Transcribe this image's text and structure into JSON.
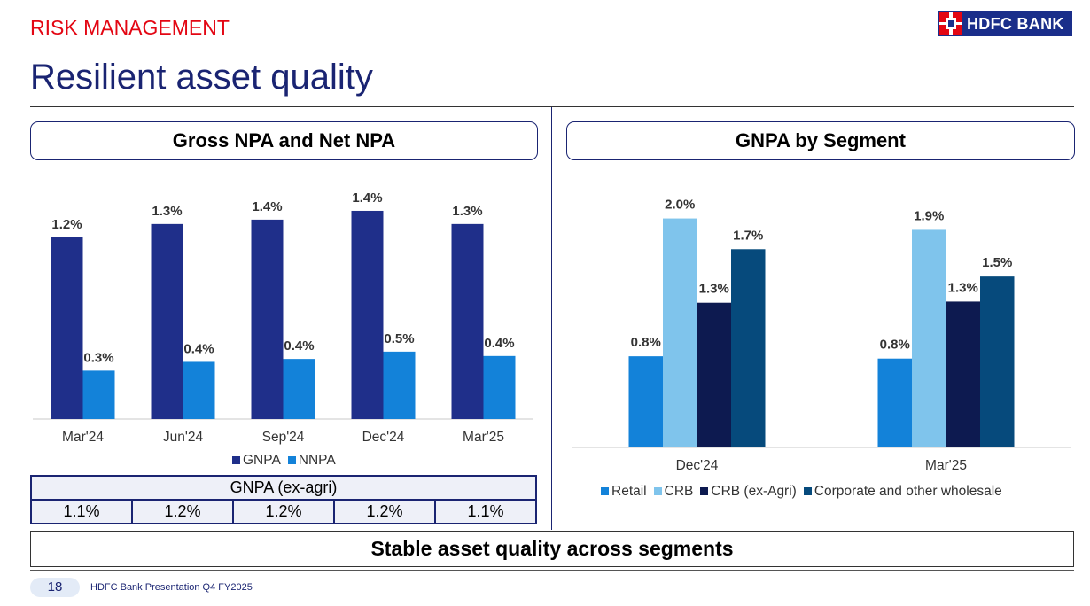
{
  "section_tag": "RISK MANAGEMENT",
  "logo": {
    "text": "HDFC BANK"
  },
  "page_title": "Resilient asset quality",
  "panels": {
    "left_title": "Gross NPA and Net NPA",
    "right_title": "GNPA by Segment"
  },
  "colors": {
    "gnpa": "#1f2f8a",
    "nnpa": "#1382d9",
    "retail": "#1382d9",
    "crb": "#7fc4ec",
    "crb_ex_agri": "#0d1a50",
    "corporate": "#064a7c",
    "accent_red": "#e30613",
    "navy": "#1a2472"
  },
  "chart_data": [
    {
      "type": "bar",
      "title": "Gross NPA and Net NPA",
      "categories": [
        "Mar'24",
        "Jun'24",
        "Sep'24",
        "Dec'24",
        "Mar'25"
      ],
      "series": [
        {
          "name": "GNPA",
          "values": [
            1.24,
            1.33,
            1.36,
            1.42,
            1.33
          ],
          "labels": [
            "1.2%",
            "1.3%",
            "1.4%",
            "1.4%",
            "1.3%"
          ]
        },
        {
          "name": "NNPA",
          "values": [
            0.33,
            0.39,
            0.41,
            0.46,
            0.43
          ],
          "labels": [
            "0.3%",
            "0.4%",
            "0.4%",
            "0.5%",
            "0.4%"
          ]
        }
      ],
      "ylim": [
        0,
        1.45
      ],
      "grid": false,
      "legend": "bottom"
    },
    {
      "type": "bar",
      "title": "GNPA by Segment",
      "categories": [
        "Dec'24",
        "Mar'25"
      ],
      "series": [
        {
          "name": "Retail",
          "values": [
            0.8,
            0.78
          ],
          "labels": [
            "0.8%",
            "0.8%"
          ]
        },
        {
          "name": "CRB",
          "values": [
            2.01,
            1.91
          ],
          "labels": [
            "2.0%",
            "1.9%"
          ]
        },
        {
          "name": "CRB (ex-Agri)",
          "values": [
            1.27,
            1.28
          ],
          "labels": [
            "1.3%",
            "1.3%"
          ]
        },
        {
          "name": "Corporate and other wholesale",
          "values": [
            1.74,
            1.5
          ],
          "labels": [
            "1.7%",
            "1.5%"
          ]
        }
      ],
      "ylim": [
        0,
        2.1
      ],
      "grid": false,
      "legend": "bottom"
    }
  ],
  "exagri_table": {
    "header": "GNPA (ex-agri)",
    "values": [
      "1.1%",
      "1.2%",
      "1.2%",
      "1.2%",
      "1.1%"
    ]
  },
  "conclusion": "Stable asset quality across segments",
  "footer": {
    "page_number": "18",
    "text": "HDFC Bank Presentation Q4 FY2025"
  }
}
